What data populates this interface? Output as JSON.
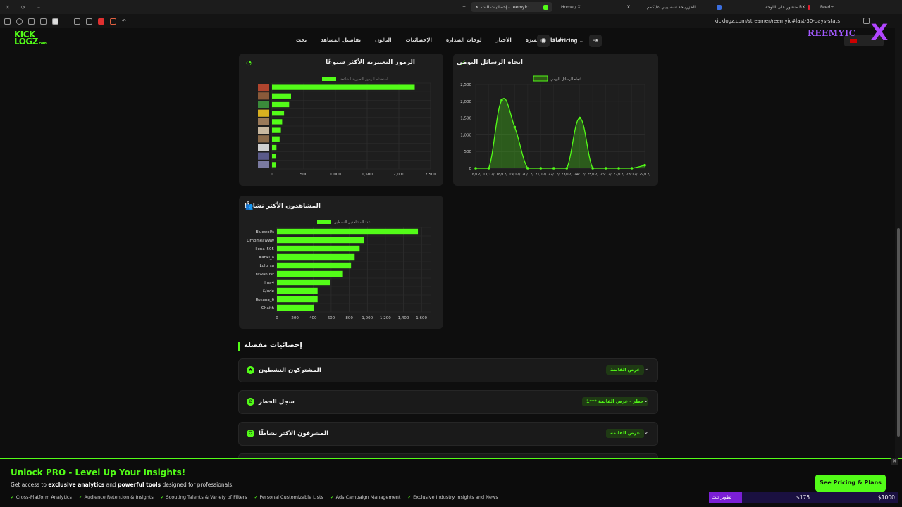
{
  "browser": {
    "tabs": [
      {
        "label": "إحصائيات البث - reemyic",
        "active": true
      },
      {
        "label": "Home / X",
        "active": false
      },
      {
        "label": "الحزربيحة تسسيبيي عليكمم",
        "active": false
      },
      {
        "label": "منشور على اللوحة RX",
        "active": false
      },
      {
        "label": "Feed+",
        "active": false
      }
    ],
    "url": "kicklogz.com/streamer/reemyic#last-30-days-stats"
  },
  "site": {
    "logo_line1": "KICK",
    "logo_line2": "LOGZ",
    "logo_suffix": ".com",
    "nav": [
      "بحث",
      "تفاصيل المشاهد",
      "البالون",
      "الإحصائيات",
      "لوحات الصدارة",
      "الأخبار",
      "الباقات المميزة"
    ],
    "pricing": "Pricing",
    "watermark": "REEMYIC"
  },
  "emoji_card": {
    "title": "الرموز التعبيرية الأكثر شيوعًا",
    "chart_data": {
      "type": "bar",
      "orientation": "horizontal",
      "legend": "استخدام الرموز التعبيرية الشائعة",
      "x_ticks": [
        "0",
        "500",
        "1,000",
        "1,500",
        "2,000",
        "2,500"
      ],
      "xlim": [
        0,
        2500
      ],
      "values": [
        2250,
        300,
        270,
        190,
        160,
        140,
        120,
        70,
        60,
        60
      ],
      "colors": [
        "#b0452e",
        "#8a5a3a",
        "#3a8a3a",
        "#d8b020",
        "#9a7a5a",
        "#c8b8a0",
        "#8a6a4a",
        "#cfcfcf",
        "#5a5a8a",
        "#7a7aa0"
      ]
    }
  },
  "messages_card": {
    "title": "اتجاه الرسائل اليومي",
    "chart_data": {
      "type": "line",
      "legend": "اتجاه الرسائل اليومي",
      "x": [
        "16/12",
        "17/12",
        "18/12",
        "19/12",
        "20/12",
        "21/12",
        "22/12",
        "23/12",
        "24/12",
        "25/12",
        "26/12",
        "27/12",
        "28/12",
        "29/12"
      ],
      "x_tick_labels": [
        "16/12/",
        "17/12/",
        "18/12/",
        "19/12/",
        "20/12/",
        "21/12/",
        "22/12/",
        "23/12/",
        "24/12/",
        "25/12/",
        "26/12/",
        "27/12/",
        "28/12/",
        "29/12/"
      ],
      "values": [
        0,
        0,
        2030,
        1230,
        0,
        0,
        0,
        0,
        1500,
        0,
        0,
        0,
        0,
        90
      ],
      "y_ticks": [
        "0",
        "500",
        "1,000",
        "1,500",
        "2,000",
        "2,500"
      ],
      "ylim": [
        0,
        2500
      ]
    }
  },
  "viewers_card": {
    "title": "المشاهدون الأكثر نشاطًا",
    "chart_data": {
      "type": "bar",
      "orientation": "horizontal",
      "legend": "عدد المشاهدين النشطين",
      "categories": [
        "Bluewolfs",
        "Limomeawww",
        "Ilena_505",
        "Kanki_a",
        "iLulu_sa",
        "rawan09r",
        "ilma4",
        "&Jude",
        "Rozana_6",
        "Ghaith"
      ],
      "values": [
        1560,
        960,
        915,
        860,
        820,
        730,
        590,
        450,
        450,
        410
      ],
      "x_ticks": [
        "0",
        "200",
        "400",
        "600",
        "800",
        "1,000",
        "1,200",
        "1,400",
        "1,600"
      ],
      "xlim": [
        0,
        1700
      ]
    }
  },
  "details": {
    "title": "إحصائيات مفصلة",
    "items": [
      {
        "label": "المشتركون النشطون",
        "badge": "عرض القائمة",
        "icon": "star-icon"
      },
      {
        "label": "سجل الحظر",
        "badge": "حظر - عرض القائمة ***1",
        "icon": "ban-icon"
      },
      {
        "label": "المشرفون الأكثر نشاطًا",
        "badge": "عرض القائمة",
        "icon": "shield-icon"
      }
    ]
  },
  "pro": {
    "headline": "Unlock PRO - Level Up Your Insights!",
    "sub_prefix": "Get access to",
    "sub_b1": "exclusive analytics",
    "sub_mid": "and",
    "sub_b2": "powerful tools",
    "sub_suffix": "designed for professionals.",
    "features": [
      "Cross-Platform Analytics",
      "Audience Retention & Insights",
      "Scouting Talents & Variety of Filters",
      "Personal Customizable Lists",
      "Ads Campaign Management",
      "Exclusive Industry Insights and News"
    ],
    "cta": "See Pricing & Plans"
  },
  "donation": {
    "tag": "تطوير ثبث",
    "current": "$175",
    "goal": "$1000",
    "progress": 0.175
  }
}
